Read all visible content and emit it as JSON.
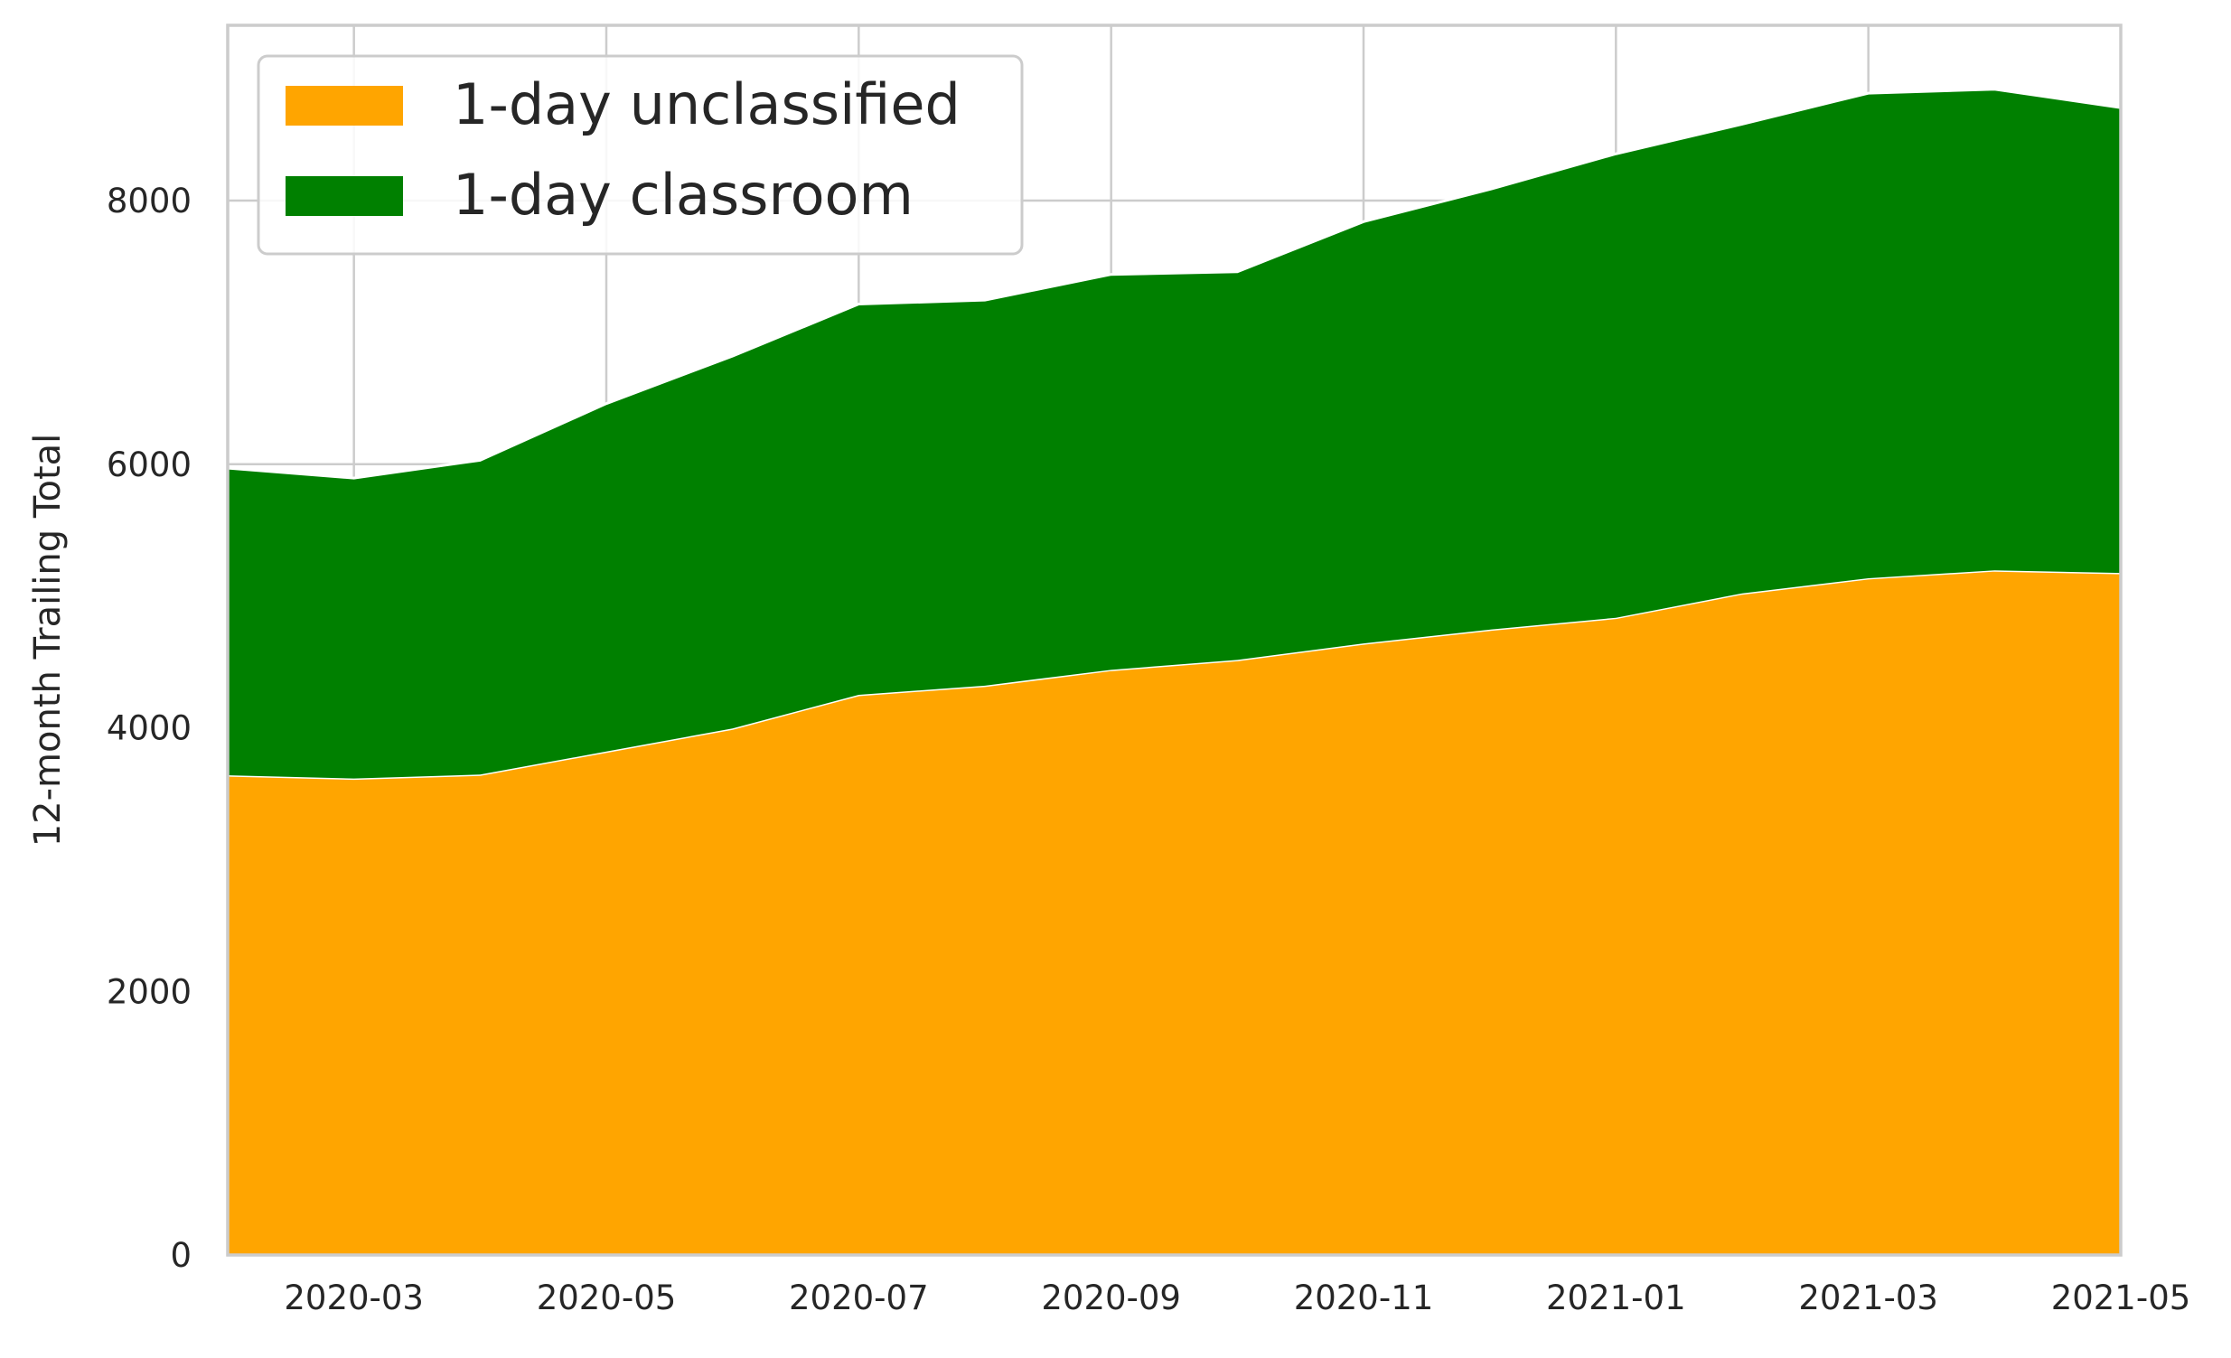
{
  "chart_data": {
    "type": "area",
    "stacked": true,
    "x": [
      "2020-02",
      "2020-03",
      "2020-04",
      "2020-05",
      "2020-06",
      "2020-07",
      "2020-08",
      "2020-09",
      "2020-10",
      "2020-11",
      "2020-12",
      "2021-01",
      "2021-02",
      "2021-03",
      "2021-04",
      "2021-05"
    ],
    "series": [
      {
        "name": "1-day unclassified",
        "color": "#FFA500",
        "values": [
          3640,
          3615,
          3645,
          3820,
          3995,
          4250,
          4320,
          4440,
          4515,
          4640,
          4745,
          4835,
          5020,
          5135,
          5195,
          5175
        ]
      },
      {
        "name": "1-day classroom",
        "color": "#008000",
        "values": [
          2330,
          2280,
          2385,
          2640,
          2825,
          2965,
          2925,
          3000,
          2945,
          3200,
          3340,
          3520,
          3560,
          3680,
          3650,
          3530
        ]
      }
    ],
    "xlabel": "",
    "ylabel": "12-month Trailing Total",
    "xlim": [
      "2020-02",
      "2021-05"
    ],
    "ylim": [
      0,
      9330
    ],
    "x_tick_labels": [
      "2020-03",
      "2020-05",
      "2020-07",
      "2020-09",
      "2020-11",
      "2021-01",
      "2021-03",
      "2021-05"
    ],
    "y_tick_labels": [
      "0",
      "2000",
      "4000",
      "6000",
      "8000"
    ],
    "y_ticks": [
      0,
      2000,
      4000,
      6000,
      8000
    ],
    "grid": true,
    "legend_position": "top-left",
    "colors": {
      "grid": "#cccccc",
      "spine": "#cccccc",
      "area_edge": "#ffffff",
      "text": "#262626"
    }
  }
}
